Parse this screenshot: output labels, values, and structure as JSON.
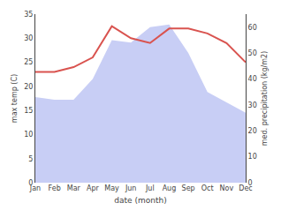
{
  "chart_data": {
    "type": "line",
    "xlabel": "date (month)",
    "ylabel": "max temp (C)",
    "y2label": "med. precipitation (kg/m2)",
    "categories": [
      "Jan",
      "Feb",
      "Mar",
      "Apr",
      "May",
      "Jun",
      "Jul",
      "Aug",
      "Sep",
      "Oct",
      "Nov",
      "Dec"
    ],
    "series": [
      {
        "type": "area",
        "axis": "y2",
        "color": "#c8cef5",
        "values": [
          33,
          32,
          32,
          40,
          55,
          54,
          60,
          61,
          50,
          35,
          31,
          27
        ]
      },
      {
        "type": "line",
        "color": "#d9534f",
        "values": [
          23,
          23,
          24,
          26,
          32.5,
          30,
          29,
          32,
          32,
          31,
          29,
          25
        ]
      }
    ],
    "ylim": [
      0,
      35
    ],
    "yticks": [
      0,
      5,
      10,
      15,
      20,
      25,
      30,
      35
    ],
    "y2lim": [
      0,
      65
    ],
    "y2ticks": [
      0,
      10,
      20,
      30,
      40,
      50,
      60
    ],
    "grid": false
  }
}
